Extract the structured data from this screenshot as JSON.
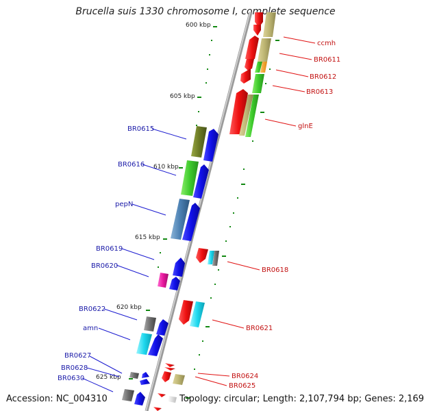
{
  "title": "Brucella suis 1330 chromosome I, complete sequence",
  "accession_label": "Accession: NC_004310",
  "topology_label": "Topology: circular; Length: 2,107,794 bp; Genes: 2,169",
  "kbp_labels": [
    "600 kbp",
    "605 kbp",
    "610 kbp",
    "615 kbp",
    "620 kbp",
    "625 kbp"
  ],
  "genes_left": [
    {
      "name": "BR0615"
    },
    {
      "name": "BR0616"
    },
    {
      "name": "pepN"
    },
    {
      "name": "BR0619"
    },
    {
      "name": "BR0620"
    },
    {
      "name": "BR0622"
    },
    {
      "name": "amn"
    },
    {
      "name": "BR0627"
    },
    {
      "name": "BR0628"
    },
    {
      "name": "BR0630"
    }
  ],
  "genes_right": [
    {
      "name": "ccmh"
    },
    {
      "name": "BR0611"
    },
    {
      "name": "BR0612"
    },
    {
      "name": "BR0613"
    },
    {
      "name": "glnE"
    },
    {
      "name": "BR0618"
    },
    {
      "name": "BR0621"
    },
    {
      "name": "BR0624"
    },
    {
      "name": "BR0625"
    }
  ],
  "colors": {
    "backbone": "#8a8a8a",
    "forward_arrow": "#1010e8",
    "reverse_arrow": "#ee1010",
    "left_label": "#1a1aa8",
    "right_label": "#c21010",
    "tick": "#118811"
  }
}
